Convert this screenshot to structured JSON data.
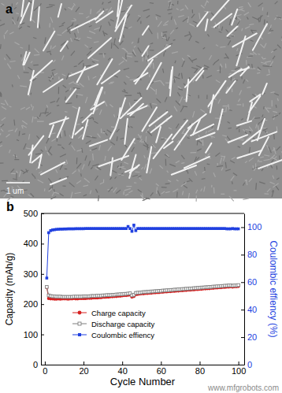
{
  "panel_a": {
    "label": "a",
    "scale_bar": "1 um"
  },
  "watermark": "www.mfgrobots.com",
  "chart_data": {
    "type": "line",
    "annotations": [
      "b"
    ],
    "x_label": "Cycle Number",
    "y_label": "Capacity (mAh/g)",
    "y2_label": "Coulombic effiency (%)",
    "xlim": [
      -2,
      103
    ],
    "xticks": [
      0,
      20,
      40,
      60,
      80,
      100
    ],
    "ylim": [
      0,
      500
    ],
    "yticks": [
      0,
      100,
      200,
      300,
      400,
      500
    ],
    "y2lim": [
      0,
      110
    ],
    "y2ticks": [
      0,
      20,
      40,
      60,
      80,
      100
    ],
    "legend": "lower left",
    "x": [
      1,
      2,
      3,
      4,
      5,
      6,
      7,
      8,
      9,
      10,
      11,
      12,
      13,
      14,
      15,
      16,
      17,
      18,
      19,
      20,
      21,
      22,
      23,
      24,
      25,
      26,
      27,
      28,
      29,
      30,
      31,
      32,
      33,
      34,
      35,
      36,
      37,
      38,
      39,
      40,
      41,
      42,
      43,
      44,
      45,
      46,
      47,
      48,
      49,
      50,
      51,
      52,
      53,
      54,
      55,
      56,
      57,
      58,
      59,
      60,
      61,
      62,
      63,
      64,
      65,
      66,
      67,
      68,
      69,
      70,
      71,
      72,
      73,
      74,
      75,
      76,
      77,
      78,
      79,
      80,
      81,
      82,
      83,
      84,
      85,
      86,
      87,
      88,
      89,
      90,
      91,
      92,
      93,
      94,
      95,
      96,
      97,
      98,
      99,
      100
    ],
    "series": [
      {
        "name": "Charge capacity",
        "color": "#d62020",
        "marker": "circle",
        "line_style": "solid",
        "values": [
          255,
          219,
          218,
          218,
          217,
          217,
          218,
          217,
          218,
          218,
          218,
          217,
          218,
          218,
          219,
          218,
          218,
          219,
          219,
          219,
          219,
          220,
          220,
          220,
          221,
          221,
          221,
          222,
          222,
          223,
          223,
          224,
          224,
          225,
          225,
          226,
          226,
          227,
          227,
          228,
          229,
          229,
          230,
          231,
          224,
          226,
          232,
          233,
          234,
          235,
          235,
          236,
          236,
          237,
          237,
          238,
          238,
          239,
          239,
          240,
          240,
          241,
          241,
          242,
          242,
          243,
          243,
          244,
          244,
          245,
          245,
          246,
          246,
          247,
          247,
          248,
          248,
          249,
          249,
          250,
          250,
          251,
          251,
          252,
          252,
          253,
          253,
          254,
          254,
          255,
          255,
          256,
          256,
          257,
          257,
          258,
          257,
          258,
          258,
          259
        ]
      },
      {
        "name": "Discharge capacity",
        "color": "#7f7f7f",
        "marker": "square-open",
        "line_style": "solid",
        "values": [
          257,
          229,
          227,
          226,
          226,
          225,
          225,
          225,
          224,
          224,
          224,
          224,
          224,
          224,
          225,
          225,
          225,
          225,
          225,
          226,
          226,
          226,
          226,
          227,
          227,
          227,
          228,
          228,
          228,
          229,
          229,
          230,
          230,
          230,
          231,
          231,
          232,
          232,
          233,
          233,
          234,
          234,
          235,
          236,
          229,
          231,
          237,
          238,
          238,
          239,
          240,
          240,
          241,
          241,
          242,
          242,
          243,
          243,
          244,
          244,
          245,
          245,
          246,
          246,
          247,
          247,
          248,
          248,
          249,
          249,
          250,
          250,
          251,
          251,
          252,
          252,
          253,
          253,
          254,
          254,
          255,
          255,
          256,
          256,
          257,
          257,
          258,
          258,
          259,
          259,
          260,
          260,
          261,
          261,
          262,
          262,
          261,
          262,
          262,
          263
        ]
      },
      {
        "name": "Coulombic effiency",
        "color": "#2040e0",
        "marker": "square",
        "line_style": "solid",
        "axis": "y2",
        "values": [
          63,
          96,
          97.5,
          98,
          98.2,
          98.4,
          98.5,
          98.6,
          98.6,
          98.7,
          98.7,
          98.8,
          98.8,
          98.8,
          98.8,
          98.9,
          98.9,
          98.9,
          98.9,
          98.9,
          99,
          99,
          99,
          99,
          99,
          99,
          99,
          99,
          99,
          99,
          99,
          99,
          99,
          99,
          99,
          99,
          99,
          99,
          99,
          99,
          99,
          99,
          100.5,
          99,
          97,
          101.5,
          97.5,
          99,
          99,
          99,
          99,
          99,
          99,
          99,
          99,
          99,
          99,
          99,
          99,
          99,
          99,
          99,
          99,
          99,
          99,
          99,
          99,
          99,
          99,
          99,
          99,
          99,
          99,
          99,
          99,
          99,
          99,
          99,
          99,
          99,
          99,
          99,
          99,
          99,
          99,
          99,
          99,
          99,
          99,
          99,
          99,
          99,
          99,
          98.8,
          98.8,
          98.8,
          99,
          98.8,
          98.8,
          98.8
        ]
      }
    ]
  }
}
